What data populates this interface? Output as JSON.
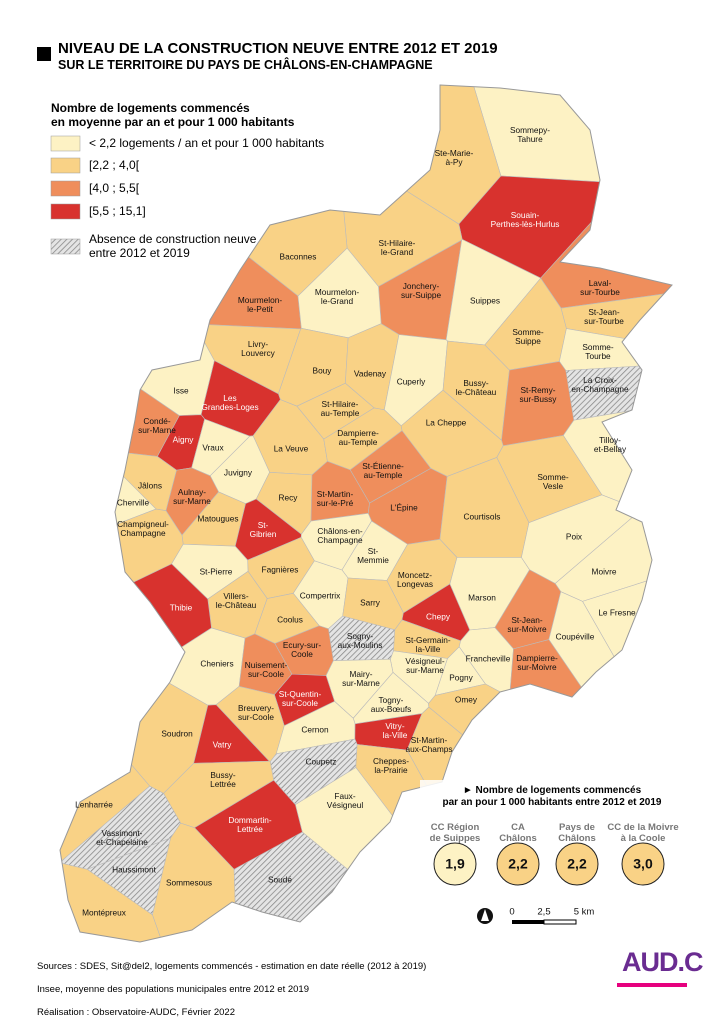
{
  "title": "NIVEAU DE LA CONSTRUCTION NEUVE ENTRE 2012 ET 2019",
  "subtitle": "SUR LE TERRITOIRE DU PAYS DE CHÂLONS-EN-CHAMPAGNE",
  "legend": {
    "title": "Nombre de logements commencés\nen moyenne par an et pour 1 000 habitants",
    "classes": [
      {
        "label": "< 2,2 logements / an et pour 1 000 habitants",
        "color": "#fdf2c4"
      },
      {
        "label": "[2,2 ; 4,0[",
        "color": "#f9d286"
      },
      {
        "label": "[4,0 ; 5,5[",
        "color": "#ef8e5c"
      },
      {
        "label": "[5,5 ; 15,1]",
        "color": "#d8322e"
      },
      {
        "label": "Absence de construction neuve\nentre 2012 et 2019",
        "color": "#9a9a9a",
        "pattern": "hatched"
      }
    ]
  },
  "communes": [
    {
      "name": "Sommepy-\nTahure",
      "class": 0
    },
    {
      "name": "Ste-Marie-\nà-Py",
      "class": 1
    },
    {
      "name": "Souain-\nPerthes-lès-Hurlus",
      "class": 3
    },
    {
      "name": "St-Hilaire-\nle-Grand",
      "class": 1
    },
    {
      "name": "Baconnes",
      "class": 1
    },
    {
      "name": "Jonchery-\nsur-Suippe",
      "class": 2
    },
    {
      "name": "Suippes",
      "class": 0
    },
    {
      "name": "Laval-\nsur-Tourbe",
      "class": 2
    },
    {
      "name": "St-Jean-\nsur-Tourbe",
      "class": 1
    },
    {
      "name": "Mourmelon-\nle-Petit",
      "class": 2
    },
    {
      "name": "Mourmelon-\nle-Grand",
      "class": 0
    },
    {
      "name": "Somme-\nSuippe",
      "class": 1
    },
    {
      "name": "Somme-\nTourbe",
      "class": 0
    },
    {
      "name": "Livry-\nLouvercy",
      "class": 1
    },
    {
      "name": "Bouy",
      "class": 1
    },
    {
      "name": "Vadenay",
      "class": 1
    },
    {
      "name": "Cuperly",
      "class": 0
    },
    {
      "name": "Bussy-\nle-Château",
      "class": 1
    },
    {
      "name": "St-Remy-\nsur-Bussy",
      "class": 2
    },
    {
      "name": "La Croix-\nen-Champagne",
      "class": 4
    },
    {
      "name": "Isse",
      "class": 0
    },
    {
      "name": "Les\nGrandes-Loges",
      "class": 3
    },
    {
      "name": "St-Hilaire-\nau-Temple",
      "class": 1
    },
    {
      "name": "Condé-\nsur-Marne",
      "class": 2
    },
    {
      "name": "Aigny",
      "class": 3
    },
    {
      "name": "Vraux",
      "class": 0
    },
    {
      "name": "La Veuve",
      "class": 1
    },
    {
      "name": "Dampierre-\nau-Temple",
      "class": 1
    },
    {
      "name": "La Cheppe",
      "class": 1
    },
    {
      "name": "Tilloy-\net-Bellay",
      "class": 0
    },
    {
      "name": "Juvigny",
      "class": 0
    },
    {
      "name": "St-Étienne-\nau-Temple",
      "class": 2
    },
    {
      "name": "Jâlons",
      "class": 1
    },
    {
      "name": "Cherville",
      "class": 0
    },
    {
      "name": "Aulnay-\nsur-Marne",
      "class": 2
    },
    {
      "name": "Recy",
      "class": 1
    },
    {
      "name": "St-Martin-\nsur-le-Pré",
      "class": 2
    },
    {
      "name": "L'Épine",
      "class": 2
    },
    {
      "name": "Somme-\nVesle",
      "class": 1
    },
    {
      "name": "Courtisols",
      "class": 1
    },
    {
      "name": "Matougues",
      "class": 1
    },
    {
      "name": "St-\nGibrien",
      "class": 3
    },
    {
      "name": "Champigneul-\nChampagne",
      "class": 1
    },
    {
      "name": "Châlons-en-\nChampagne",
      "class": 0
    },
    {
      "name": "Poix",
      "class": 0
    },
    {
      "name": "St-\nMemmie",
      "class": 0
    },
    {
      "name": "Fagnières",
      "class": 1
    },
    {
      "name": "St-Pierre",
      "class": 0
    },
    {
      "name": "Moivre",
      "class": 0
    },
    {
      "name": "Compertrix",
      "class": 0
    },
    {
      "name": "Villers-\nle-Château",
      "class": 1
    },
    {
      "name": "Thibie",
      "class": 3
    },
    {
      "name": "Moncetz-\nLongevas",
      "class": 1
    },
    {
      "name": "Marson",
      "class": 0
    },
    {
      "name": "Sarry",
      "class": 1
    },
    {
      "name": "Le Fresne",
      "class": 0
    },
    {
      "name": "Chepy",
      "class": 3
    },
    {
      "name": "Coolus",
      "class": 1
    },
    {
      "name": "Sogny-\naux-Moulins",
      "class": 4
    },
    {
      "name": "St-Germain-\nla-Ville",
      "class": 1
    },
    {
      "name": "St-Jean-\nsur-Moivre",
      "class": 2
    },
    {
      "name": "Coupéville",
      "class": 0
    },
    {
      "name": "Ecury-sur-\nCoole",
      "class": 2
    },
    {
      "name": "Cheniers",
      "class": 0
    },
    {
      "name": "Nuisement-\nsur-Coole",
      "class": 2
    },
    {
      "name": "Francheville",
      "class": 0
    },
    {
      "name": "Vésigneul-\nsur-Marne",
      "class": 0
    },
    {
      "name": "Dampierre-\nsur-Moivre",
      "class": 2
    },
    {
      "name": "Mairy-\nsur-Marne",
      "class": 0
    },
    {
      "name": "Pogny",
      "class": 0
    },
    {
      "name": "Togny-\naux-Bœufs",
      "class": 0
    },
    {
      "name": "St-Quentin-\nsur-Coole",
      "class": 3
    },
    {
      "name": "Omey",
      "class": 1
    },
    {
      "name": "Breuvery-\nsur-Coole",
      "class": 1
    },
    {
      "name": "Soudron",
      "class": 1
    },
    {
      "name": "Cernon",
      "class": 0
    },
    {
      "name": "Vitry-\nla-Ville",
      "class": 3
    },
    {
      "name": "St-Martin-\naux-Champs",
      "class": 1
    },
    {
      "name": "Vatry",
      "class": 3
    },
    {
      "name": "Coupetz",
      "class": 4
    },
    {
      "name": "Cheppes-\nla-Prairie",
      "class": 1
    },
    {
      "name": "Bussy-\nLettrée",
      "class": 1
    },
    {
      "name": "Faux-\nVésigneul",
      "class": 0
    },
    {
      "name": "Lenharrée",
      "class": 1
    },
    {
      "name": "Dommartin-\nLettrée",
      "class": 3
    },
    {
      "name": "Vassimont-\net-Chapelaine",
      "class": 4
    },
    {
      "name": "Haussimont",
      "class": 4
    },
    {
      "name": "Sommesous",
      "class": 1
    },
    {
      "name": "Soudé",
      "class": 4
    },
    {
      "name": "Montépreux",
      "class": 1
    }
  ],
  "indicators": {
    "title": "► Nombre de logements commencés\npar an pour 1 000 habitants entre 2012 et 2019",
    "items": [
      {
        "name": "CC Région\nde Suippes",
        "value": 1.9,
        "value_label": "1,9",
        "color": "#fdf2c4"
      },
      {
        "name": "CA\nChâlons",
        "value": 2.2,
        "value_label": "2,2",
        "color": "#f9d286"
      },
      {
        "name": "Pays de\nChâlons",
        "value": 2.2,
        "value_label": "2,2",
        "color": "#f9d286"
      },
      {
        "name": "CC de la Moivre\nà la Coole",
        "value": 3.0,
        "value_label": "3,0",
        "color": "#f9d286"
      }
    ]
  },
  "scale": {
    "labels": [
      "0",
      "2,5",
      "5 km"
    ]
  },
  "sources": [
    "Sources : SDES, Sit@del2, logements commencés - estimation en date réelle (2012 à 2019)",
    "Insee, moyenne des populations municipales entre 2012 et 2019",
    "Réalisation : Observatoire-AUDC, Février 2022"
  ],
  "logo": "AUD.C"
}
